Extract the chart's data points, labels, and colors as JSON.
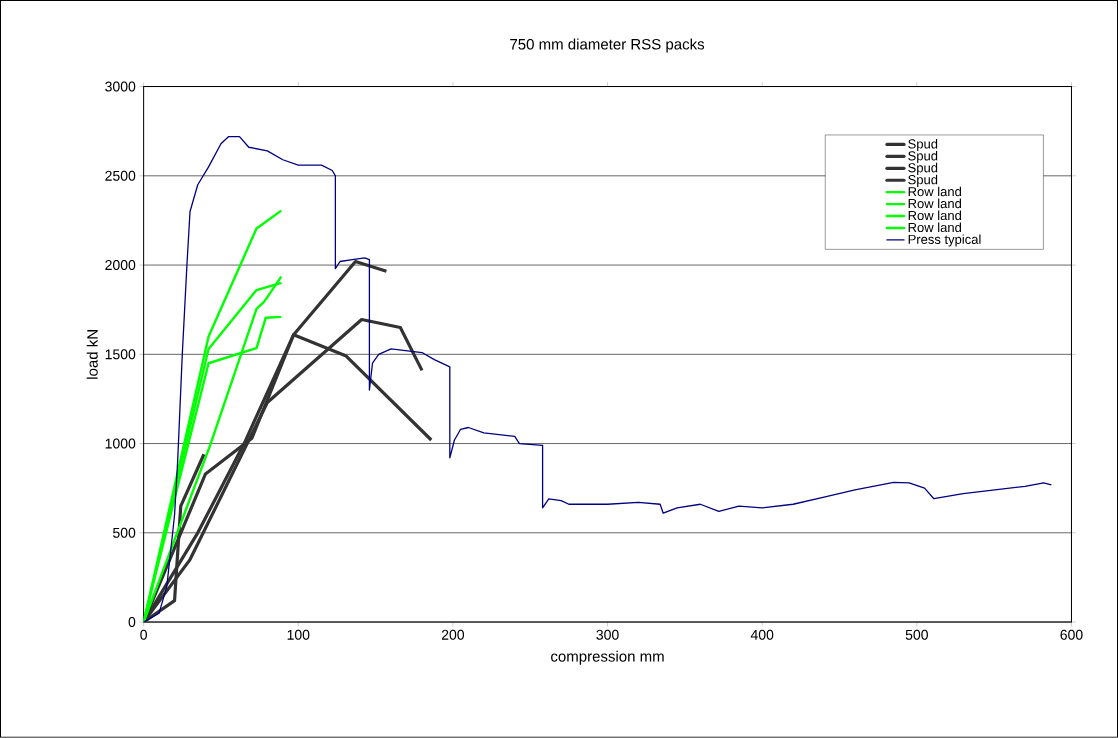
{
  "chart_data": {
    "type": "line",
    "title": "750 mm diameter RSS packs",
    "xlabel": "compression mm",
    "ylabel": "load kN",
    "xlim": [
      0,
      600
    ],
    "xticks": [
      0,
      100,
      200,
      300,
      400,
      500,
      600
    ],
    "ylim": [
      0,
      3000
    ],
    "yticks": [
      0,
      500,
      1000,
      1500,
      2000,
      2500,
      3000
    ],
    "grid": "y",
    "legend": "top right",
    "marker": "none",
    "series": [
      {
        "name": "Spud",
        "color": "#333333",
        "x": [
          0,
          20,
          24,
          39
        ],
        "values": [
          0,
          120,
          650,
          940
        ]
      },
      {
        "name": "Spud",
        "color": "#333333",
        "x": [
          0,
          40,
          70,
          97,
          131,
          186
        ],
        "values": [
          0,
          830,
          1030,
          1610,
          1490,
          1020
        ]
      },
      {
        "name": "Spud",
        "color": "#333333",
        "x": [
          0,
          30,
          80,
          141,
          166,
          180
        ],
        "values": [
          0,
          350,
          1230,
          1695,
          1650,
          1410
        ]
      },
      {
        "name": "Spud",
        "color": "#333333",
        "x": [
          0,
          35,
          65,
          97,
          137,
          157
        ],
        "values": [
          0,
          500,
          1000,
          1610,
          2020,
          1965
        ]
      },
      {
        "name": "Row land",
        "color": "#00ff00",
        "x": [
          0,
          42,
          73,
          89
        ],
        "values": [
          0,
          1600,
          2205,
          2305
        ]
      },
      {
        "name": "Row land",
        "color": "#00ff00",
        "x": [
          0,
          42,
          73,
          89
        ],
        "values": [
          0,
          1530,
          1860,
          1900
        ]
      },
      {
        "name": "Row land",
        "color": "#00ff00",
        "x": [
          0,
          42,
          73,
          79,
          89
        ],
        "values": [
          0,
          1450,
          1535,
          1705,
          1710
        ]
      },
      {
        "name": "Row land",
        "color": "#00ff00",
        "x": [
          0,
          43,
          73,
          78,
          89
        ],
        "values": [
          0,
          990,
          1755,
          1795,
          1935
        ]
      },
      {
        "name": "Press typical",
        "color": "#000080",
        "x": [
          0,
          10,
          15,
          20,
          22,
          25,
          28,
          30,
          35,
          42,
          50,
          55,
          62,
          68,
          80,
          90,
          100,
          115,
          122,
          124,
          124,
          127,
          135,
          143,
          146,
          146,
          148,
          152,
          160,
          180,
          188,
          198,
          198,
          201,
          205,
          210,
          220,
          240,
          243,
          258,
          258,
          262,
          270,
          275,
          300,
          320,
          334,
          336,
          345,
          360,
          372,
          385,
          400,
          420,
          440,
          460,
          485,
          495,
          505,
          511,
          530,
          550,
          570,
          582,
          587
        ],
        "values": [
          0,
          50,
          200,
          600,
          900,
          1500,
          2000,
          2300,
          2450,
          2550,
          2680,
          2720,
          2720,
          2660,
          2640,
          2590,
          2560,
          2560,
          2530,
          2500,
          1980,
          2020,
          2030,
          2040,
          2030,
          1300,
          1450,
          1500,
          1530,
          1510,
          1470,
          1430,
          920,
          1020,
          1080,
          1090,
          1060,
          1040,
          1000,
          990,
          640,
          690,
          680,
          660,
          660,
          670,
          660,
          610,
          640,
          660,
          620,
          650,
          640,
          660,
          700,
          740,
          783,
          780,
          750,
          691,
          720,
          740,
          760,
          780,
          768
        ]
      }
    ]
  }
}
